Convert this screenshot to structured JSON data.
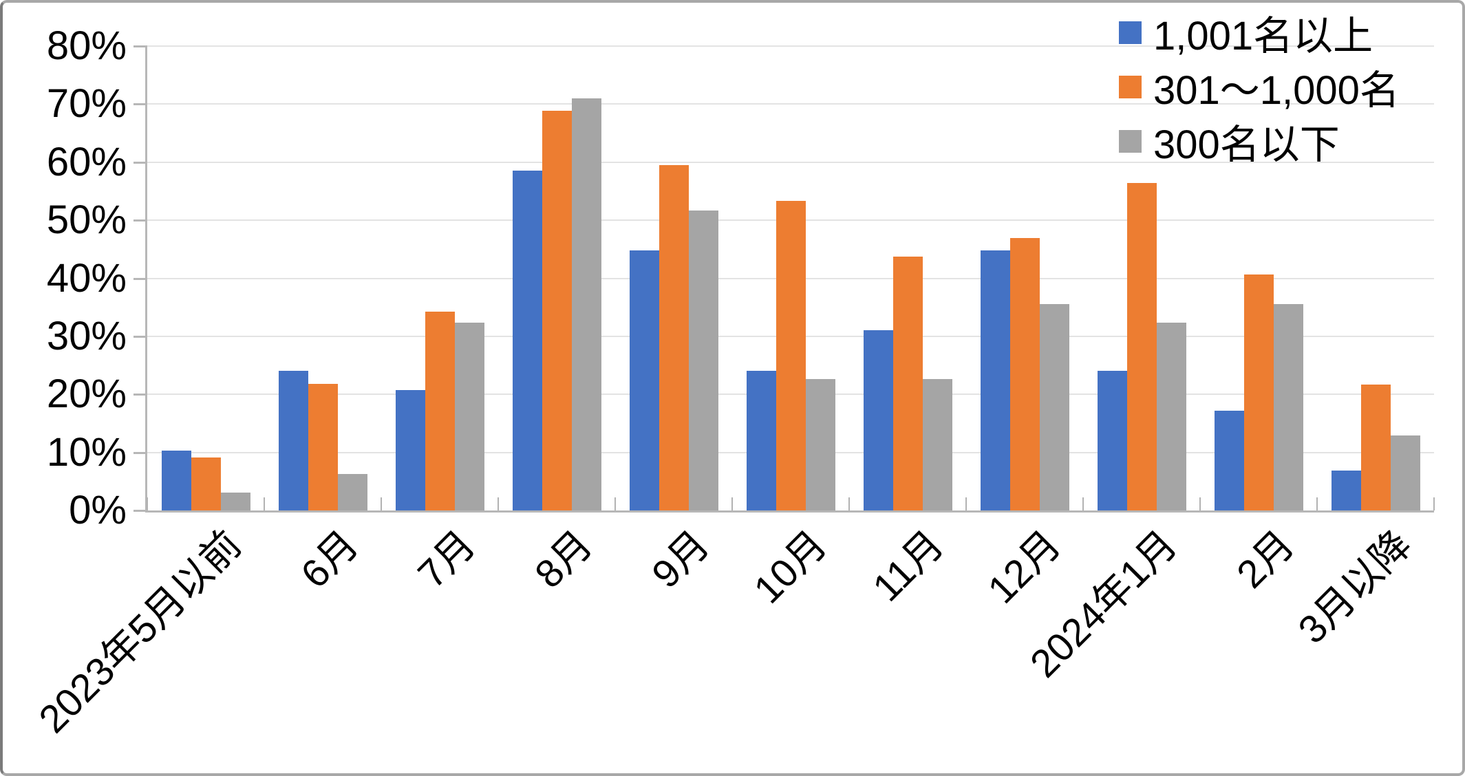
{
  "chart_data": {
    "type": "bar",
    "title": "",
    "xlabel": "",
    "ylabel": "",
    "categories": [
      "2023年5月以前",
      "6月",
      "7月",
      "8月",
      "9月",
      "10月",
      "11月",
      "12月",
      "2024年1月",
      "2月",
      "3月以降"
    ],
    "series": [
      {
        "name": "1,001名以上",
        "color": "#4472C4",
        "values": [
          10.3,
          24.1,
          20.7,
          58.6,
          44.8,
          24.1,
          31.0,
          44.8,
          24.1,
          17.2,
          6.9
        ]
      },
      {
        "name": "301～1,000名",
        "color": "#ED7D31",
        "values": [
          9.1,
          21.8,
          34.3,
          68.9,
          59.5,
          53.3,
          43.7,
          46.9,
          56.4,
          40.6,
          21.7
        ]
      },
      {
        "name": "300名以下",
        "color": "#A5A5A5",
        "values": [
          3.1,
          6.3,
          32.3,
          71.0,
          51.7,
          22.6,
          22.6,
          35.5,
          32.3,
          35.5,
          12.9
        ]
      }
    ],
    "ylim": [
      0,
      80
    ],
    "ytick_step": 10,
    "ytick_labels": [
      "0%",
      "10%",
      "20%",
      "30%",
      "40%",
      "50%",
      "60%",
      "70%",
      "80%"
    ],
    "unit": "%",
    "grid": true,
    "legend_position": "top-right",
    "xlabel_rotation_deg": 45
  }
}
